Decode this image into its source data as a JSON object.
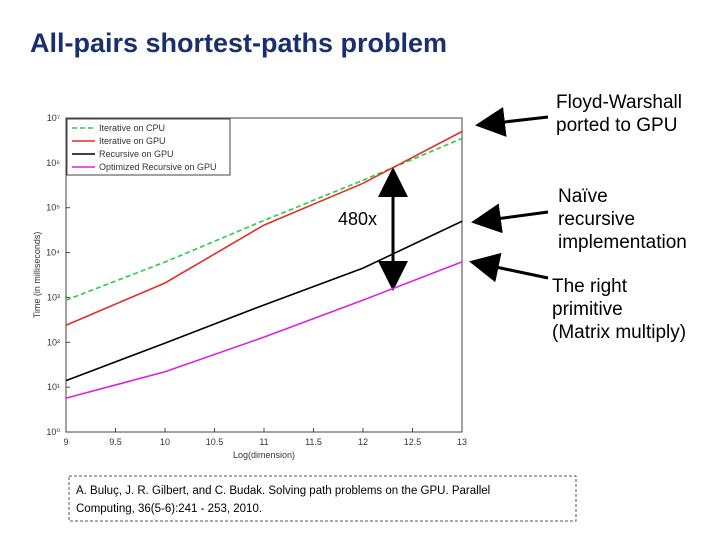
{
  "title": "All-pairs shortest-paths problem",
  "annotations": [
    {
      "lines": [
        "Floyd-Warshall",
        "ported to GPU"
      ]
    },
    {
      "lines": [
        "Naïve",
        "recursive",
        "implementation"
      ]
    },
    {
      "lines": [
        "The right",
        "primitive",
        "(Matrix multiply)"
      ]
    }
  ],
  "speedup_label": "480x",
  "citation": [
    "A. Buluç, J. R. Gilbert, and C. Budak. Solving path problems on the GPU. Parallel",
    "Computing, 36(5-6):241 - 253, 2010."
  ],
  "chart_data": {
    "type": "line",
    "xlabel": "Log(dimension)",
    "ylabel": "Time (in milliseconds)",
    "yscale": "log",
    "x": [
      9,
      10,
      11,
      12,
      13
    ],
    "series": [
      {
        "name": "Iterative on CPU",
        "color": "#2ecc40",
        "dash": true,
        "values": [
          870,
          6150,
          52000,
          410000,
          3500000
        ]
      },
      {
        "name": "Iterative on GPU",
        "color": "#e0302a",
        "dash": false,
        "values": [
          240,
          2100,
          41000,
          350000,
          5000000
        ]
      },
      {
        "name": "Recursive on GPU",
        "color": "#000000",
        "dash": false,
        "values": [
          14,
          96,
          680,
          4500,
          50000
        ]
      },
      {
        "name": "Optimized Recursive on GPU",
        "color": "#e020e0",
        "dash": false,
        "values": [
          5.7,
          22,
          130,
          870,
          6200
        ]
      }
    ],
    "xlim": [
      9,
      13
    ],
    "xticks": [
      9,
      9.5,
      10,
      10.5,
      11,
      11.5,
      12,
      12.5,
      13
    ],
    "ylim": [
      1,
      10000000
    ],
    "yticks": [
      {
        "value": 1,
        "label": "10⁰"
      },
      {
        "value": 10,
        "label": "10¹"
      },
      {
        "value": 100,
        "label": "10²"
      },
      {
        "value": 1000,
        "label": "10³"
      },
      {
        "value": 10000,
        "label": "10⁴"
      },
      {
        "value": 100000,
        "label": "10⁵"
      },
      {
        "value": 1000000,
        "label": "10⁶"
      },
      {
        "value": 10000000,
        "label": "10⁷"
      }
    ],
    "legend": "upper left"
  }
}
